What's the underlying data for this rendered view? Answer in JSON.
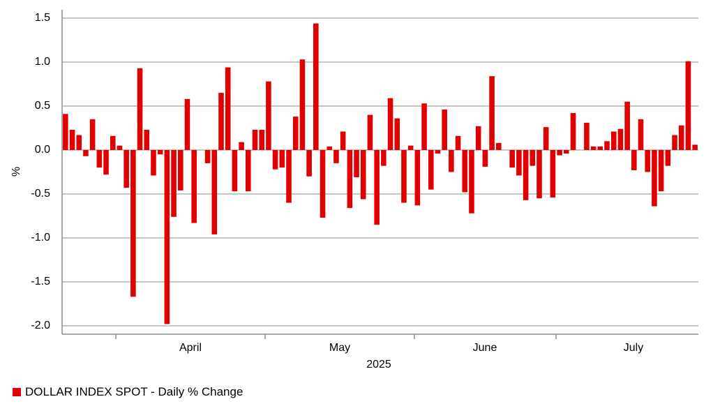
{
  "chart_data": {
    "type": "bar",
    "ylabel": "%",
    "xlabel": "2025",
    "ylim": [
      -2.0,
      1.5
    ],
    "yticks": [
      "1.5",
      "1.0",
      "0.5",
      "0.0",
      "-0.5",
      "-1.0",
      "-1.5",
      "-2.0"
    ],
    "ytick_values": [
      1.5,
      1.0,
      0.5,
      0.0,
      -0.5,
      -1.0,
      -1.5,
      -2.0
    ],
    "grid": "horizontal",
    "legend_position": "bottom-left",
    "month_labels": [
      "April",
      "May",
      "June",
      "July"
    ],
    "color": "#e00000",
    "series": [
      {
        "name": "DOLLAR INDEX SPOT - Daily % Change",
        "values": [
          0.41,
          0.23,
          0.17,
          -0.07,
          0.35,
          -0.2,
          -0.28,
          0.16,
          0.05,
          -0.43,
          -1.67,
          0.93,
          0.23,
          -0.29,
          -0.05,
          -1.98,
          -0.76,
          -0.46,
          0.58,
          -0.83,
          null,
          -0.15,
          -0.96,
          0.65,
          0.94,
          -0.47,
          0.09,
          -0.47,
          0.23,
          0.23,
          0.78,
          -0.22,
          -0.2,
          -0.6,
          0.38,
          1.03,
          -0.3,
          1.44,
          -0.77,
          0.04,
          -0.15,
          0.21,
          -0.66,
          -0.31,
          -0.56,
          0.4,
          -0.85,
          -0.18,
          0.59,
          0.36,
          -0.6,
          0.05,
          -0.63,
          0.53,
          -0.45,
          -0.04,
          0.46,
          -0.25,
          0.16,
          -0.48,
          -0.72,
          0.27,
          -0.19,
          0.84,
          0.08,
          null,
          -0.2,
          -0.29,
          -0.57,
          -0.18,
          -0.55,
          0.26,
          -0.54,
          -0.06,
          -0.04,
          0.42,
          null,
          0.31,
          0.04,
          0.04,
          0.1,
          0.21,
          0.24,
          0.55,
          -0.23,
          0.35,
          -0.25,
          -0.64,
          -0.47,
          -0.18,
          0.17,
          0.28,
          1.01,
          0.06
        ]
      }
    ]
  }
}
